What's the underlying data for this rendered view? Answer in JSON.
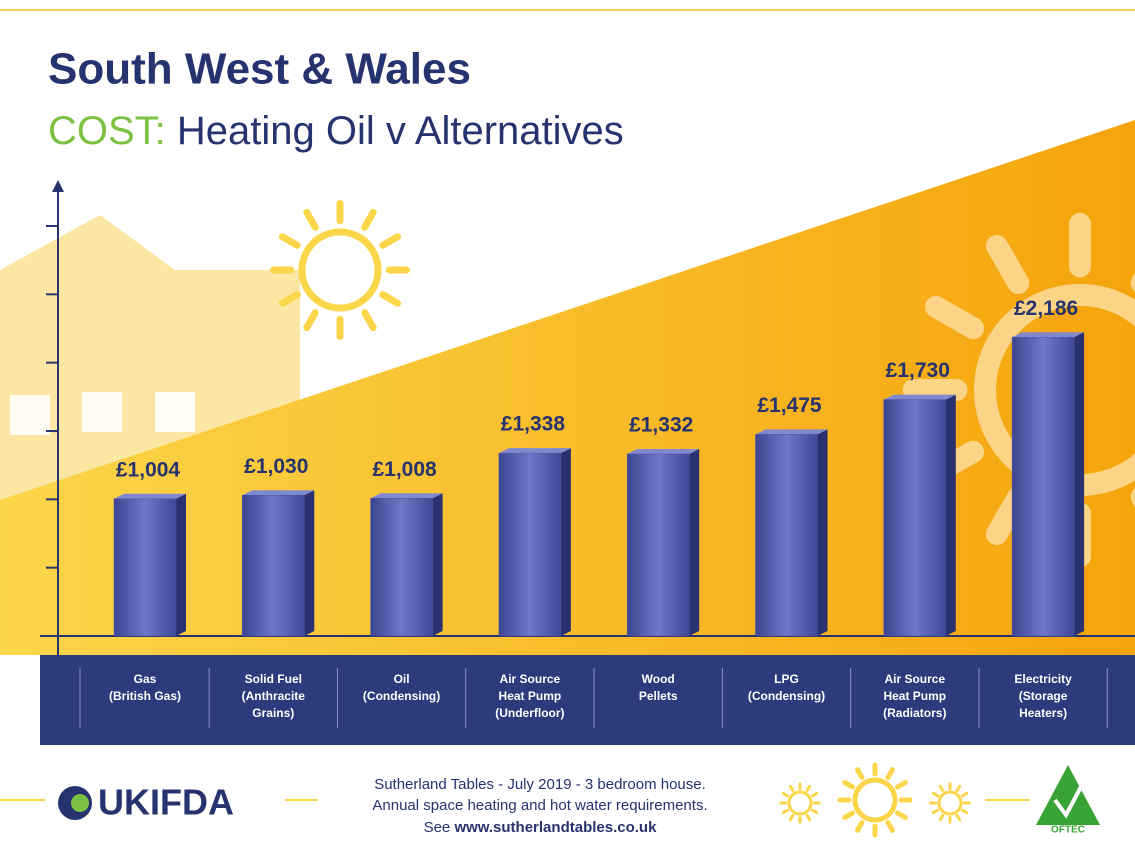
{
  "chart_data": {
    "type": "bar",
    "title": "South West & Wales",
    "subtitle_highlight": "COST:",
    "subtitle": "Heating Oil v Alternatives",
    "categories": [
      "Gas\n(British Gas)",
      "Solid Fuel\n(Anthracite\nGrains)",
      "Oil\n(Condensing)",
      "Air Source\nHeat Pump\n(Underfloor)",
      "Wood\nPellets",
      "LPG\n(Condensing)",
      "Air Source\nHeat Pump\n(Radiators)",
      "Electricity\n(Storage\nHeaters)"
    ],
    "values": [
      1004,
      1030,
      1008,
      1338,
      1332,
      1475,
      1730,
      2186
    ],
    "value_labels": [
      "£1,004",
      "£1,030",
      "£1,008",
      "£1,338",
      "£1,332",
      "£1,475",
      "£1,730",
      "£2,186"
    ],
    "color": "#4a53a6",
    "ylim": [
      0,
      3300
    ],
    "yticks": [
      0,
      500,
      1000,
      1500,
      2000,
      2500,
      3000
    ]
  },
  "footer": {
    "logo": "UKIFDA",
    "source_lines": [
      "Sutherland Tables - July 2019 - 3 bedroom house.",
      "Annual space heating and hot water requirements."
    ],
    "link_prefix": "See",
    "link": "www.sutherlandtables.co.uk",
    "badge": "OFTEC"
  }
}
